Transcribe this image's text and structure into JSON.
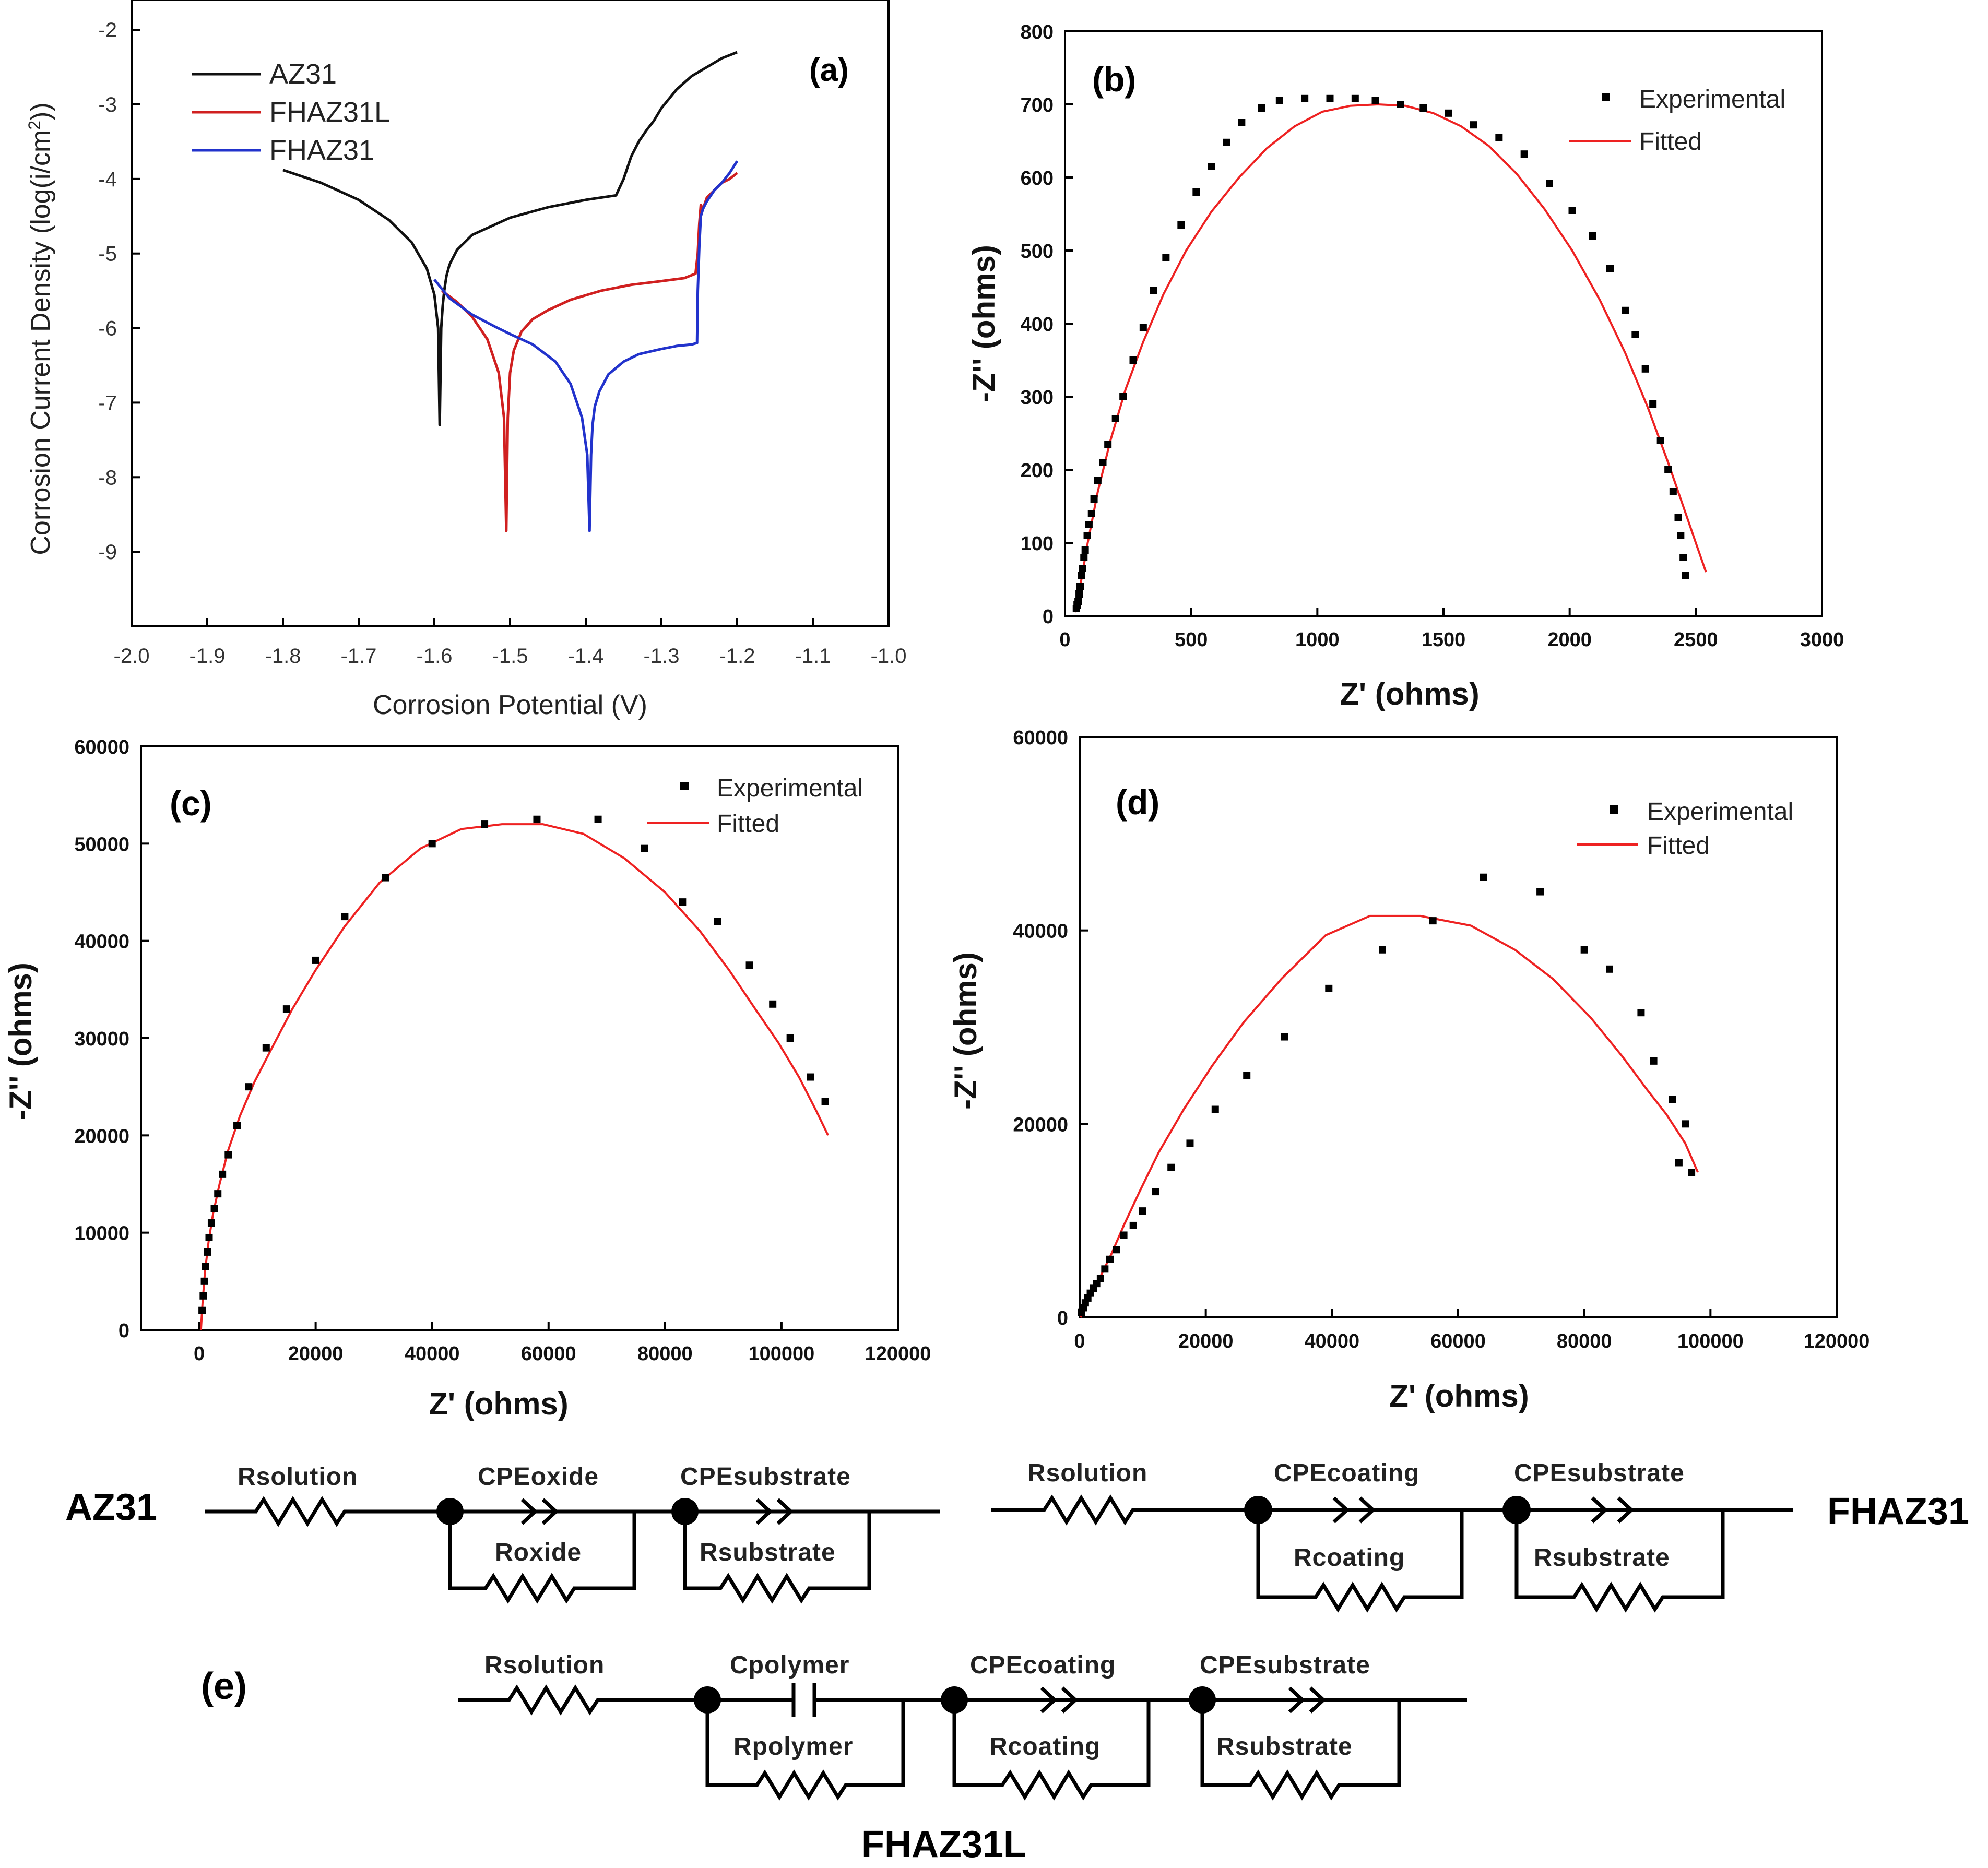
{
  "chart_data": [
    {
      "panel": "(a)",
      "type": "line",
      "xlabel": "Corrosion Potential (V)",
      "ylabel": "Corrosion Current Density (log(i/cm²))",
      "xlim": [
        -2.0,
        -1.0
      ],
      "ylim": [
        -10,
        -1.6
      ],
      "xticks": [
        "-2.0",
        "-1.9",
        "-1.8",
        "-1.7",
        "-1.6",
        "-1.5",
        "-1.4",
        "-1.3",
        "-1.2",
        "-1.1",
        "-1.0"
      ],
      "yticks": [
        "-2",
        "-3",
        "-4",
        "-5",
        "-6",
        "-7",
        "-8",
        "-9"
      ],
      "legend": "top-left",
      "series": [
        {
          "name": "AZ31",
          "color": "#111111",
          "x": [
            -1.8,
            -1.75,
            -1.7,
            -1.66,
            -1.63,
            -1.61,
            -1.6,
            -1.595,
            -1.593,
            -1.591,
            -1.589,
            -1.587,
            -1.584,
            -1.58,
            -1.57,
            -1.55,
            -1.5,
            -1.45,
            -1.4,
            -1.36,
            -1.35,
            -1.34,
            -1.33,
            -1.32,
            -1.31,
            -1.3,
            -1.28,
            -1.26,
            -1.24,
            -1.22,
            -1.2
          ],
          "y": [
            -3.88,
            -4.05,
            -4.28,
            -4.55,
            -4.85,
            -5.2,
            -5.55,
            -6.0,
            -7.3,
            -6.0,
            -5.7,
            -5.5,
            -5.3,
            -5.15,
            -4.95,
            -4.75,
            -4.52,
            -4.38,
            -4.28,
            -4.22,
            -4.0,
            -3.7,
            -3.5,
            -3.35,
            -3.22,
            -3.05,
            -2.8,
            -2.62,
            -2.5,
            -2.38,
            -2.3
          ]
        },
        {
          "name": "FHAZ31L",
          "color": "#d02020",
          "x": [
            -1.59,
            -1.57,
            -1.55,
            -1.53,
            -1.515,
            -1.508,
            -1.505,
            -1.503,
            -1.5,
            -1.495,
            -1.485,
            -1.47,
            -1.45,
            -1.42,
            -1.38,
            -1.34,
            -1.3,
            -1.27,
            -1.255,
            -1.252,
            -1.25,
            -1.248,
            -1.245,
            -1.24,
            -1.23,
            -1.22,
            -1.21,
            -1.2
          ],
          "y": [
            -5.5,
            -5.65,
            -5.85,
            -6.15,
            -6.6,
            -7.2,
            -8.72,
            -7.2,
            -6.6,
            -6.3,
            -6.05,
            -5.88,
            -5.76,
            -5.62,
            -5.5,
            -5.42,
            -5.37,
            -5.33,
            -5.27,
            -5.0,
            -4.6,
            -4.35,
            -4.4,
            -4.25,
            -4.15,
            -4.05,
            -4.0,
            -3.92
          ]
        },
        {
          "name": "FHAZ31",
          "color": "#2233cc",
          "x": [
            -1.6,
            -1.58,
            -1.55,
            -1.52,
            -1.5,
            -1.47,
            -1.44,
            -1.42,
            -1.405,
            -1.398,
            -1.395,
            -1.393,
            -1.391,
            -1.388,
            -1.382,
            -1.37,
            -1.35,
            -1.33,
            -1.3,
            -1.28,
            -1.26,
            -1.253,
            -1.252,
            -1.25,
            -1.248,
            -1.245,
            -1.24,
            -1.23,
            -1.22,
            -1.21,
            -1.2
          ],
          "y": [
            -5.35,
            -5.6,
            -5.82,
            -5.98,
            -6.08,
            -6.22,
            -6.45,
            -6.75,
            -7.2,
            -7.7,
            -8.72,
            -7.7,
            -7.3,
            -7.05,
            -6.85,
            -6.62,
            -6.45,
            -6.35,
            -6.28,
            -6.24,
            -6.22,
            -6.2,
            -5.5,
            -4.9,
            -4.5,
            -4.4,
            -4.3,
            -4.15,
            -4.05,
            -3.92,
            -3.76
          ]
        }
      ]
    },
    {
      "panel": "(b)",
      "type": "scatter+line",
      "xlabel": "Z' (ohms)",
      "ylabel": "-Z'' (ohms)",
      "xlim": [
        0,
        3000
      ],
      "ylim": [
        0,
        800
      ],
      "xticks": [
        "0",
        "500",
        "1000",
        "1500",
        "2000",
        "2500",
        "3000"
      ],
      "yticks": [
        "0",
        "100",
        "200",
        "300",
        "400",
        "500",
        "600",
        "700",
        "800"
      ],
      "legend": "top-right",
      "series": [
        {
          "name": "Experimental",
          "marker": "square",
          "x": [
            45,
            48,
            52,
            56,
            60,
            65,
            70,
            75,
            80,
            88,
            95,
            105,
            115,
            130,
            150,
            170,
            200,
            230,
            270,
            310,
            350,
            400,
            460,
            520,
            580,
            640,
            700,
            780,
            850,
            950,
            1050,
            1150,
            1230,
            1330,
            1420,
            1520,
            1620,
            1720,
            1820,
            1920,
            2010,
            2090,
            2160,
            2220,
            2260,
            2300,
            2330,
            2360,
            2390,
            2410,
            2430,
            2440,
            2450,
            2460
          ],
          "y": [
            10,
            15,
            20,
            30,
            40,
            55,
            65,
            80,
            90,
            110,
            125,
            140,
            160,
            185,
            210,
            235,
            270,
            300,
            350,
            395,
            445,
            490,
            535,
            580,
            615,
            648,
            675,
            695,
            705,
            708,
            708,
            708,
            705,
            700,
            695,
            688,
            672,
            655,
            632,
            592,
            555,
            520,
            475,
            418,
            385,
            338,
            290,
            240,
            200,
            170,
            135,
            110,
            80,
            55
          ]
        },
        {
          "name": "Fitted",
          "color": "#ee2222",
          "x": [
            40,
            60,
            90,
            130,
            180,
            240,
            310,
            390,
            480,
            580,
            690,
            800,
            910,
            1020,
            1130,
            1240,
            1350,
            1460,
            1570,
            1680,
            1790,
            1900,
            2010,
            2120,
            2220,
            2310,
            2390,
            2450,
            2500,
            2540
          ],
          "y": [
            5,
            40,
            100,
            170,
            240,
            310,
            375,
            440,
            500,
            553,
            600,
            640,
            670,
            690,
            698,
            700,
            698,
            688,
            670,
            643,
            605,
            557,
            500,
            432,
            360,
            285,
            210,
            150,
            100,
            60
          ]
        }
      ]
    },
    {
      "panel": "(c)",
      "type": "scatter+line",
      "xlabel": "Z' (ohms)",
      "ylabel": "-Z'' (ohms)",
      "xlim": [
        -10000,
        120000
      ],
      "ylim": [
        0,
        60000
      ],
      "xticks": [
        "0",
        "20000",
        "40000",
        "60000",
        "80000",
        "100000",
        "120000"
      ],
      "yticks": [
        "0",
        "10000",
        "20000",
        "30000",
        "40000",
        "50000",
        "60000"
      ],
      "legend": "top-right",
      "series": [
        {
          "name": "Experimental",
          "marker": "square",
          "x": [
            500,
            700,
            900,
            1100,
            1400,
            1700,
            2100,
            2600,
            3200,
            4000,
            5000,
            6500,
            8500,
            11500,
            15000,
            20000,
            25000,
            32000,
            40000,
            49000,
            58000,
            68500,
            76500,
            83000,
            89000,
            94500,
            98500,
            101500,
            105000,
            107500
          ],
          "y": [
            2000,
            3500,
            5000,
            6500,
            8000,
            9500,
            11000,
            12500,
            14000,
            16000,
            18000,
            21000,
            25000,
            29000,
            33000,
            38000,
            42500,
            46500,
            50000,
            52000,
            52500,
            52500,
            49500,
            44000,
            42000,
            37500,
            33500,
            30000,
            26000,
            23500
          ]
        },
        {
          "name": "Fitted",
          "color": "#ee2222",
          "x": [
            300,
            600,
            1000,
            1600,
            2400,
            3500,
            5000,
            7000,
            9500,
            12500,
            16000,
            20000,
            25000,
            31000,
            38000,
            45000,
            52000,
            59000,
            66000,
            73000,
            80000,
            86000,
            91000,
            95500,
            99500,
            103000,
            106000,
            108000
          ],
          "y": [
            0,
            3000,
            6000,
            9000,
            12000,
            15000,
            18500,
            22000,
            25500,
            29000,
            33000,
            37000,
            41500,
            46000,
            49500,
            51500,
            52000,
            52000,
            51000,
            48500,
            45000,
            41000,
            37000,
            33000,
            29500,
            26000,
            22500,
            20000
          ]
        }
      ]
    },
    {
      "panel": "(d)",
      "type": "scatter+line",
      "xlabel": "Z' (ohms)",
      "ylabel": "-Z'' (ohms)",
      "xlim": [
        0,
        120000
      ],
      "ylim": [
        0,
        60000
      ],
      "xticks": [
        "0",
        "20000",
        "40000",
        "60000",
        "80000",
        "100000",
        "120000"
      ],
      "yticks": [
        "0",
        "20000",
        "40000",
        "60000"
      ],
      "legend": "top-right",
      "series": [
        {
          "name": "Experimental",
          "marker": "square",
          "x": [
            300,
            600,
            900,
            1300,
            1700,
            2200,
            2700,
            3300,
            4000,
            4800,
            5800,
            7000,
            8500,
            10000,
            12000,
            14500,
            17500,
            21500,
            26500,
            32500,
            39500,
            48000,
            56000,
            64000,
            73000,
            80000,
            84000,
            89000,
            91000,
            94000,
            96000,
            97000,
            95000
          ],
          "y": [
            500,
            1000,
            1500,
            2000,
            2500,
            3000,
            3500,
            4000,
            5000,
            6000,
            7000,
            8500,
            9500,
            11000,
            13000,
            15500,
            18000,
            21500,
            25000,
            29000,
            34000,
            38000,
            41000,
            45500,
            44000,
            38000,
            36000,
            31500,
            26500,
            22500,
            20000,
            15000,
            16000
          ]
        },
        {
          "name": "Fitted",
          "color": "#ee2222",
          "x": [
            200,
            800,
            1500,
            2500,
            3500,
            5000,
            7000,
            9500,
            12500,
            16500,
            21000,
            26000,
            32000,
            39000,
            46000,
            54000,
            62000,
            69000,
            75000,
            81000,
            86000,
            90000,
            93000,
            96000,
            98000
          ],
          "y": [
            0,
            1200,
            2200,
            3200,
            4500,
            6500,
            9500,
            13000,
            17000,
            21500,
            26000,
            30500,
            35000,
            39500,
            41500,
            41500,
            40500,
            38000,
            35000,
            31000,
            27000,
            23500,
            21000,
            18000,
            15000
          ]
        }
      ]
    }
  ],
  "panels": {
    "a": {
      "label": "(a)",
      "legend": [
        "AZ31",
        "FHAZ31L",
        "FHAZ31"
      ]
    },
    "b": {
      "label": "(b)",
      "legend": [
        "Experimental",
        "Fitted"
      ]
    },
    "c": {
      "label": "(c)",
      "legend": [
        "Experimental",
        "Fitted"
      ]
    },
    "d": {
      "label": "(d)",
      "legend": [
        "Experimental",
        "Fitted"
      ]
    },
    "e": {
      "label": "(e)"
    }
  },
  "axes_titles": {
    "a_x": "Corrosion Potential (V)",
    "a_y": "Corrosion Current Density (log(i/cm",
    "a_y_sup": "2",
    "a_y_end": "))",
    "zreal": "Z' (ohms)",
    "zimag": "-Z'' (ohms)"
  },
  "circuits": {
    "az31": {
      "name": "AZ31",
      "rsolution": "Rsolution",
      "cpe1": "CPEoxide",
      "r1": "Roxide",
      "cpe2": "CPEsubstrate",
      "r2": "Rsubstrate"
    },
    "fhaz31": {
      "name": "FHAZ31",
      "rsolution": "Rsolution",
      "cpe1": "CPEcoating",
      "r1": "Rcoating",
      "cpe2": "CPEsubstrate",
      "r2": "Rsubstrate"
    },
    "fhaz31l": {
      "name": "FHAZ31L",
      "rsolution": "Rsolution",
      "c1": "Cpolymer",
      "r1": "Rpolymer",
      "cpe2": "CPEcoating",
      "r2": "Rcoating",
      "cpe3": "CPEsubstrate",
      "r3": "Rsubstrate"
    }
  },
  "colors": {
    "az31": "#111111",
    "fhaz31l": "#d02020",
    "fhaz31": "#2233cc",
    "fitted": "#ee2222",
    "marker": "#000000"
  }
}
